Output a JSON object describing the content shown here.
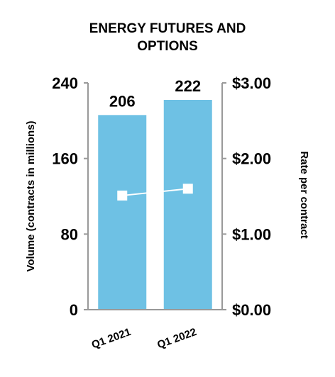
{
  "chart_data": {
    "type": "bar",
    "title": [
      "ENERGY FUTURES AND",
      "OPTIONS"
    ],
    "categories": [
      "Q1 2021",
      "Q1 2022"
    ],
    "series": [
      {
        "type": "bar",
        "axis": "left",
        "values": [
          206,
          222
        ],
        "data_labels": [
          "206",
          "222"
        ],
        "color": "#6EC1E4"
      },
      {
        "type": "line",
        "axis": "right",
        "values": [
          1.51,
          1.6
        ],
        "color": "#ffffff"
      }
    ],
    "ylabel": "Volume (contracts in millions)",
    "ylim": [
      0,
      240
    ],
    "yticks": [
      "0",
      "80",
      "160",
      "240"
    ],
    "y2label": "Rate per contract",
    "y2lim": [
      0,
      3
    ],
    "y2ticks": [
      "$0.00",
      "$1.00",
      "$2.00",
      "$3.00"
    ],
    "grid": false,
    "legend": "none"
  }
}
